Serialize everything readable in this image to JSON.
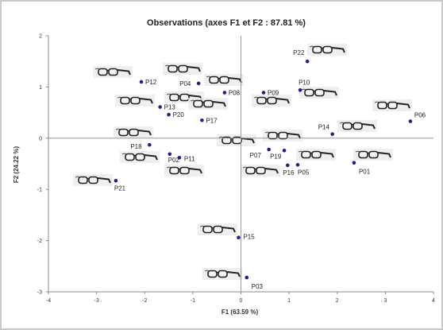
{
  "chart_data": {
    "type": "scatter",
    "title": "Observations (axes F1 et F2 : 87.81 %)",
    "xlabel": "F1 (63.59 %)",
    "ylabel": "F2 (24.22 %)",
    "xlim": [
      -4,
      4
    ],
    "ylim": [
      -3,
      2
    ],
    "xticks": [
      "-4",
      "-3",
      "-2",
      "-1",
      "0",
      "1",
      "2",
      "3",
      "4"
    ],
    "yticks": [
      "-3",
      "-2",
      "-1",
      "0",
      "1",
      "2"
    ],
    "grid": false,
    "point_color": "#1f1f8f",
    "points": [
      {
        "label": "P01",
        "x": 2.35,
        "y": -0.48
      },
      {
        "label": "P02",
        "x": -1.48,
        "y": -0.31
      },
      {
        "label": "P03",
        "x": 0.12,
        "y": -2.72
      },
      {
        "label": "P04",
        "x": -0.88,
        "y": 1.07
      },
      {
        "label": "P05",
        "x": 1.18,
        "y": -0.52
      },
      {
        "label": "P06",
        "x": 3.52,
        "y": 0.33
      },
      {
        "label": "P07",
        "x": 0.58,
        "y": -0.22
      },
      {
        "label": "P08",
        "x": -0.34,
        "y": 0.89
      },
      {
        "label": "P09",
        "x": 0.47,
        "y": 0.89
      },
      {
        "label": "P10",
        "x": 1.23,
        "y": 0.94
      },
      {
        "label": "P11",
        "x": -1.28,
        "y": -0.38
      },
      {
        "label": "P12",
        "x": -2.07,
        "y": 1.1
      },
      {
        "label": "P13",
        "x": -1.68,
        "y": 0.61
      },
      {
        "label": "P14",
        "x": 1.9,
        "y": 0.08
      },
      {
        "label": "P15",
        "x": -0.05,
        "y": -1.94
      },
      {
        "label": "P16",
        "x": 0.97,
        "y": -0.53
      },
      {
        "label": "P17",
        "x": -0.81,
        "y": 0.35
      },
      {
        "label": "P18",
        "x": -1.9,
        "y": -0.13
      },
      {
        "label": "P19",
        "x": 0.9,
        "y": -0.24
      },
      {
        "label": "P20",
        "x": -1.5,
        "y": 0.46
      },
      {
        "label": "P21",
        "x": -2.6,
        "y": -0.83
      },
      {
        "label": "P22",
        "x": 1.38,
        "y": 1.5
      }
    ]
  }
}
